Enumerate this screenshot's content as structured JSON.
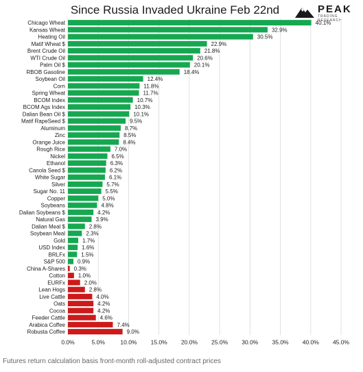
{
  "header": {
    "title": "Since Russia Invaded Ukraine Feb 22nd",
    "logo_name": "PEAK",
    "logo_sub": "TRADING RESEARCH"
  },
  "footnote": "Futures return calculation basis front-month roll-adjusted contract prices",
  "colors": {
    "positive": "#16a851",
    "negative": "#cc1a1a",
    "grid": "#d9d9d9"
  },
  "chart_data": {
    "type": "bar",
    "orientation": "horizontal",
    "title": "Since Russia Invaded Ukraine Feb 22nd",
    "xlim": [
      0,
      45
    ],
    "x_ticks": [
      "0.0%",
      "5.0%",
      "10.0%",
      "15.0%",
      "20.0%",
      "25.0%",
      "30.0%",
      "35.0%",
      "40.0%",
      "45.0%"
    ],
    "grid": true,
    "categories": [
      "Chicago Wheat",
      "Kansas Wheat",
      "Heating Oil",
      "Matif Wheat $",
      "Brent Crude Oil",
      "WTI Crude Oil",
      "Palm Oil $",
      "RBOB Gasoline",
      "Soybean Oil",
      "Corn",
      "Spring Wheat",
      "BCOM Index",
      "BCOM Ags Index",
      "Dalian Bean Oil $",
      "Matif RapeSeed $",
      "Aluminum",
      "Zinc",
      "Orange Juice",
      "Rough Rice",
      "Nickel",
      "Ethanol",
      "Canola Seed $",
      "White Sugar",
      "Silver",
      "Sugar No. 11",
      "Copper",
      "Soybeans",
      "Dalian Soybeans $",
      "Natural Gas",
      "Dalian Meal $",
      "Soybean Meal",
      "Gold",
      "USD Index",
      "BRLFx",
      "S&P 500",
      "China A-Shares",
      "Cotton",
      "EURFx",
      "Lean Hogs",
      "Live Cattle",
      "Oats",
      "Cocoa",
      "Feeder Cattle",
      "Arabica Coffee",
      "Robusta Coffee"
    ],
    "values": [
      40.1,
      32.9,
      30.5,
      22.9,
      21.8,
      20.6,
      20.1,
      18.4,
      12.4,
      11.8,
      11.7,
      10.7,
      10.3,
      10.1,
      9.5,
      8.7,
      8.5,
      8.4,
      7.0,
      6.5,
      6.3,
      6.2,
      6.1,
      5.7,
      5.5,
      5.0,
      4.8,
      4.2,
      3.9,
      2.8,
      2.3,
      1.7,
      1.6,
      1.5,
      0.9,
      0.3,
      1.0,
      2.0,
      2.8,
      4.0,
      4.2,
      4.2,
      4.6,
      7.4,
      9.0
    ],
    "value_labels": [
      "40.1%",
      "32.9%",
      "30.5%",
      "22.9%",
      "21.8%",
      "20.6%",
      "20.1%",
      "18.4%",
      "12.4%",
      "11.8%",
      "11.7%",
      "10.7%",
      "10.3%",
      "10.1%",
      "9.5%",
      "8.7%",
      "8.5%",
      "8.4%",
      "7.0%",
      "6.5%",
      "6.3%",
      "6.2%",
      "6.1%",
      "5.7%",
      "5.5%",
      "5.0%",
      "4.8%",
      "4.2%",
      "3.9%",
      "2.8%",
      "2.3%",
      "1.7%",
      "1.6%",
      "1.5%",
      "0.9%",
      "0.3%",
      "1.0%",
      "2.0%",
      "2.8%",
      "4.0%",
      "4.2%",
      "4.2%",
      "4.6%",
      "7.4%",
      "9.0%"
    ],
    "bar_colors": [
      "green",
      "green",
      "green",
      "green",
      "green",
      "green",
      "green",
      "green",
      "green",
      "green",
      "green",
      "green",
      "green",
      "green",
      "green",
      "green",
      "green",
      "green",
      "green",
      "green",
      "green",
      "green",
      "green",
      "green",
      "green",
      "green",
      "green",
      "green",
      "green",
      "green",
      "green",
      "green",
      "green",
      "green",
      "green",
      "red",
      "red",
      "red",
      "red",
      "red",
      "red",
      "red",
      "red",
      "red",
      "red"
    ]
  }
}
